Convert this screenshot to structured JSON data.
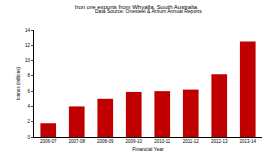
{
  "chart_data": {
    "type": "bar",
    "title": "Iron ore exports from Whyalla, South Australia",
    "subtitle": "Data Source: Onesteel & Arrium Annual Reports",
    "x_label": "Financial Year",
    "y_label": "tonnes (millions)",
    "categories": [
      "2006-07",
      "2007-08",
      "2008-09",
      "2009-10",
      "2010-11",
      "2011-12",
      "2012-13",
      "2013-14"
    ],
    "values": [
      1.8,
      4.0,
      5.0,
      5.9,
      6.0,
      6.2,
      8.2,
      12.5
    ],
    "color": "#c00000",
    "ylim": [
      0,
      14
    ],
    "yticks": [
      0,
      2,
      4,
      6,
      8,
      10,
      12,
      14
    ],
    "grid": false
  }
}
